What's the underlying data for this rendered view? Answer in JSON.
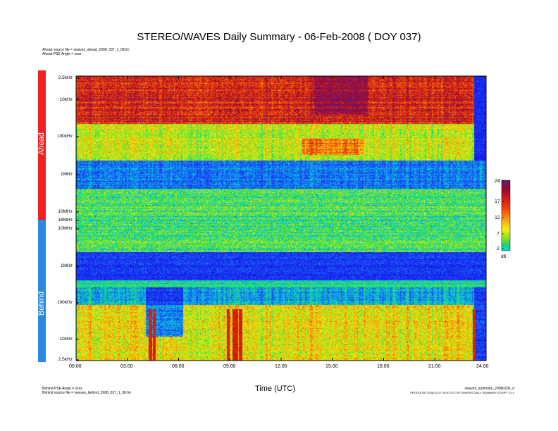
{
  "chart_data": {
    "type": "heatmap",
    "title": "STEREO/WAVES Daily Summary - 06-Feb-2008 ( DOY 037)",
    "xlabel": "Time (UTC)",
    "x_ticks": [
      "00:00",
      "03:00",
      "06:00",
      "09:00",
      "12:00",
      "15:00",
      "18:00",
      "21:00",
      "24:00"
    ],
    "xlim": [
      "00:00",
      "24:00"
    ],
    "panels": [
      {
        "name": "Ahead",
        "source_note": "Ahead source file = swaves_ahead_2008_037_1_08.fm",
        "angle_note": "Ahead PSE Angle = xxxx",
        "y_ticks": [
          "2.5kHz",
          "10kHz",
          "100kHz",
          "1MHz",
          "10MHz",
          "16MHz"
        ],
        "color": "#ee2222"
      },
      {
        "name": "Behind",
        "source_note": "Behind source file = swaves_behind_2008_037_1_08.fm",
        "angle_note": "Behind PSE Angle = xxxx",
        "y_ticks": [
          "10MHz",
          "1MHz",
          "100kHz",
          "10kHz",
          "2.5kHz"
        ],
        "color": "#2a8ae0"
      }
    ],
    "colorbar": {
      "ticks": [
        "24",
        "17",
        "12",
        "7",
        "2"
      ],
      "unit": "dB",
      "range": [
        2,
        24
      ]
    }
  },
  "footer": {
    "product": "swaves_summary_20080206_d",
    "produced": "PRODUCED 2008-02-07 00:00 UTC BY SWAVES DAILY SUMMARY SCRIPT V1.0"
  },
  "colors": {
    "ahead_band": "#ee2222",
    "behind_band": "#2a8ae0"
  }
}
